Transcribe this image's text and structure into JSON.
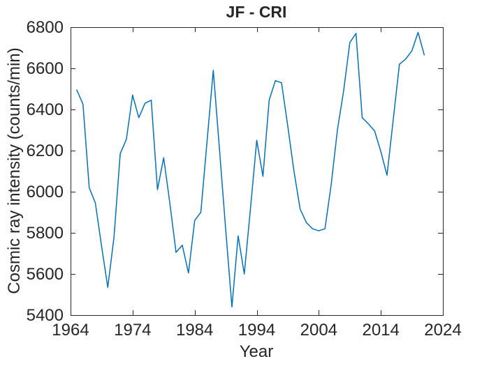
{
  "chart_data": {
    "type": "line",
    "title": "JF - CRI",
    "xlabel": "Year",
    "ylabel": "Cosmic ray intensity (counts/min)",
    "x": [
      1965,
      1966,
      1967,
      1968,
      1969,
      1970,
      1971,
      1972,
      1973,
      1974,
      1975,
      1976,
      1977,
      1978,
      1979,
      1980,
      1981,
      1982,
      1983,
      1984,
      1985,
      1986,
      1987,
      1988,
      1989,
      1990,
      1991,
      1992,
      1993,
      1994,
      1995,
      1996,
      1997,
      1998,
      1999,
      2000,
      2001,
      2002,
      2003,
      2004,
      2005,
      2006,
      2007,
      2008,
      2009,
      2010,
      2011,
      2012,
      2013,
      2014,
      2015,
      2016,
      2017,
      2018,
      2019,
      2020,
      2021
    ],
    "series": [
      {
        "name": "Cosmic ray intensity",
        "values": [
          6495,
          6425,
          6020,
          5945,
          5735,
          5535,
          5780,
          6185,
          6255,
          6470,
          6360,
          6430,
          6445,
          6010,
          6165,
          5945,
          5705,
          5740,
          5605,
          5860,
          5900,
          6245,
          6590,
          6205,
          5815,
          5440,
          5785,
          5600,
          5920,
          6250,
          6075,
          6445,
          6540,
          6530,
          6320,
          6100,
          5915,
          5850,
          5820,
          5810,
          5820,
          6035,
          6300,
          6490,
          6725,
          6770,
          6360,
          6330,
          6295,
          6195,
          6080,
          6350,
          6620,
          6645,
          6685,
          6775,
          6665
        ]
      }
    ],
    "xlim": [
      1964,
      2024
    ],
    "ylim": [
      5400,
      6800
    ],
    "xticks": [
      1964,
      1974,
      1984,
      1994,
      2004,
      2014,
      2024
    ],
    "yticks": [
      5400,
      5600,
      5800,
      6000,
      6200,
      6400,
      6600,
      6800
    ],
    "grid": false,
    "legend_position": "none",
    "line_color": "#0072bd",
    "axis_color": "#262626",
    "text_color": "#262626"
  }
}
